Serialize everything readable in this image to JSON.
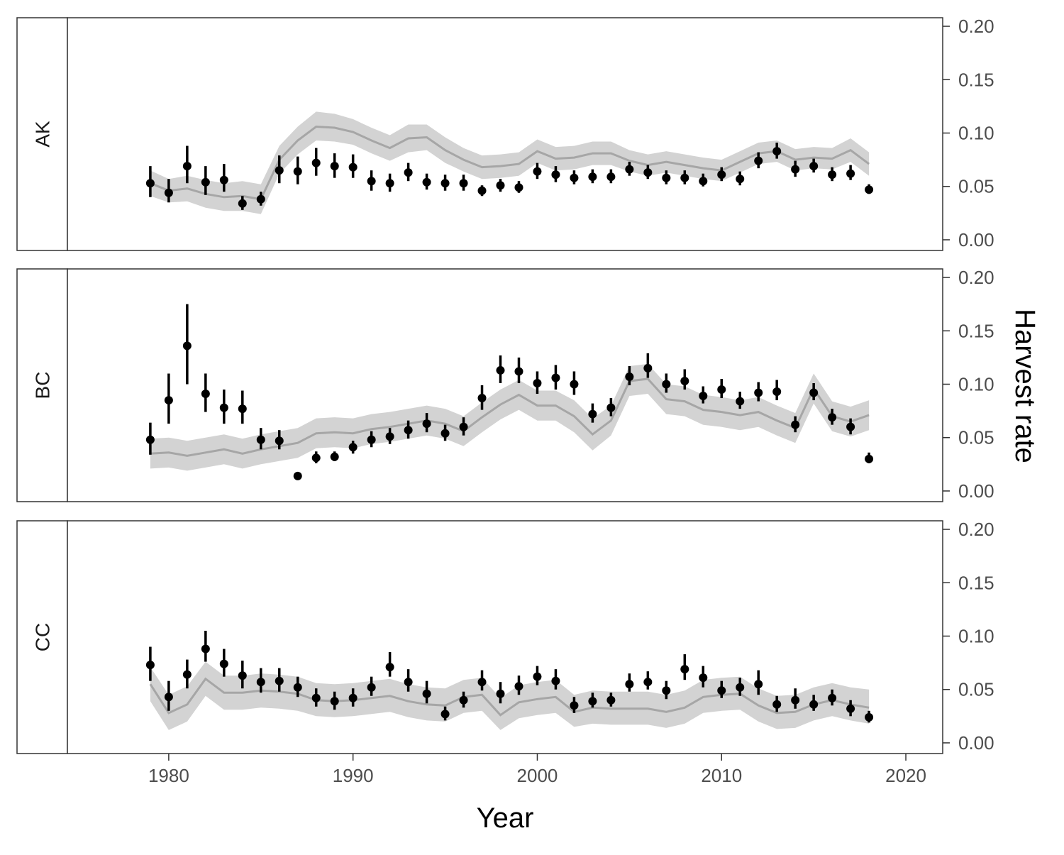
{
  "chart_data": {
    "type": "line",
    "xlabel": "Year",
    "ylabel": "Harvest rate",
    "xlim": [
      1974.5,
      2022
    ],
    "ylim": [
      -0.01,
      0.208
    ],
    "x_ticks": [
      1980,
      1990,
      2000,
      2010,
      2020
    ],
    "x_tick_labels": [
      "1980",
      "1990",
      "2000",
      "2010",
      "2020"
    ],
    "y_ticks": [
      0,
      0.05,
      0.1,
      0.15,
      0.2
    ],
    "y_tick_labels": [
      "0.00",
      "0.05",
      "0.10",
      "0.15",
      "0.20"
    ],
    "y_axis_side": "right",
    "grid": false,
    "years": [
      1979,
      1980,
      1981,
      1982,
      1983,
      1984,
      1985,
      1986,
      1987,
      1988,
      1989,
      1990,
      1991,
      1992,
      1993,
      1994,
      1995,
      1996,
      1997,
      1998,
      1999,
      2000,
      2001,
      2002,
      2003,
      2004,
      2005,
      2006,
      2007,
      2008,
      2009,
      2010,
      2011,
      2012,
      2013,
      2014,
      2015,
      2016,
      2017,
      2018
    ],
    "panels": [
      {
        "label": "AK",
        "observed": {
          "y": [
            0.053,
            0.044,
            0.069,
            0.054,
            0.056,
            0.034,
            0.038,
            0.065,
            0.064,
            0.072,
            0.069,
            0.068,
            0.055,
            0.053,
            0.063,
            0.054,
            0.053,
            0.053,
            0.046,
            0.051,
            0.049,
            0.064,
            0.061,
            0.058,
            0.059,
            0.059,
            0.066,
            0.063,
            0.058,
            0.058,
            0.055,
            0.061,
            0.057,
            0.074,
            0.083,
            0.066,
            0.069,
            0.061,
            0.062,
            0.047
          ],
          "lo": [
            0.04,
            0.035,
            0.053,
            0.042,
            0.045,
            0.028,
            0.032,
            0.053,
            0.052,
            0.06,
            0.058,
            0.058,
            0.046,
            0.045,
            0.055,
            0.047,
            0.046,
            0.046,
            0.041,
            0.045,
            0.044,
            0.057,
            0.054,
            0.052,
            0.053,
            0.053,
            0.06,
            0.057,
            0.052,
            0.052,
            0.05,
            0.055,
            0.051,
            0.067,
            0.076,
            0.059,
            0.063,
            0.055,
            0.056,
            0.043
          ],
          "hi": [
            0.069,
            0.057,
            0.088,
            0.069,
            0.071,
            0.041,
            0.045,
            0.079,
            0.078,
            0.086,
            0.081,
            0.08,
            0.065,
            0.062,
            0.072,
            0.062,
            0.061,
            0.061,
            0.051,
            0.057,
            0.055,
            0.072,
            0.069,
            0.065,
            0.066,
            0.066,
            0.073,
            0.07,
            0.065,
            0.065,
            0.062,
            0.068,
            0.064,
            0.082,
            0.091,
            0.074,
            0.076,
            0.068,
            0.07,
            0.052
          ]
        },
        "fitted": {
          "y": [
            0.053,
            0.046,
            0.048,
            0.043,
            0.04,
            0.041,
            0.038,
            0.075,
            0.093,
            0.106,
            0.105,
            0.101,
            0.093,
            0.086,
            0.095,
            0.096,
            0.084,
            0.075,
            0.068,
            0.069,
            0.071,
            0.083,
            0.076,
            0.077,
            0.081,
            0.081,
            0.074,
            0.07,
            0.073,
            0.07,
            0.067,
            0.065,
            0.073,
            0.081,
            0.083,
            0.075,
            0.077,
            0.076,
            0.084,
            0.071
          ],
          "lo": [
            0.041,
            0.035,
            0.036,
            0.03,
            0.027,
            0.027,
            0.024,
            0.062,
            0.08,
            0.093,
            0.092,
            0.089,
            0.081,
            0.074,
            0.082,
            0.084,
            0.072,
            0.064,
            0.057,
            0.058,
            0.06,
            0.072,
            0.065,
            0.066,
            0.07,
            0.07,
            0.064,
            0.06,
            0.063,
            0.06,
            0.057,
            0.055,
            0.063,
            0.071,
            0.073,
            0.065,
            0.067,
            0.066,
            0.073,
            0.06
          ],
          "hi": [
            0.065,
            0.057,
            0.06,
            0.056,
            0.053,
            0.055,
            0.052,
            0.088,
            0.106,
            0.12,
            0.118,
            0.113,
            0.105,
            0.098,
            0.108,
            0.108,
            0.096,
            0.086,
            0.079,
            0.08,
            0.082,
            0.094,
            0.087,
            0.088,
            0.092,
            0.092,
            0.084,
            0.08,
            0.083,
            0.08,
            0.077,
            0.075,
            0.083,
            0.091,
            0.093,
            0.085,
            0.087,
            0.086,
            0.095,
            0.082
          ]
        }
      },
      {
        "label": "BC",
        "observed": {
          "y": [
            0.048,
            0.085,
            0.136,
            0.091,
            0.078,
            0.077,
            0.048,
            0.047,
            0.014,
            0.031,
            0.032,
            0.041,
            0.048,
            0.051,
            0.057,
            0.063,
            0.054,
            0.06,
            0.087,
            0.113,
            0.112,
            0.101,
            0.106,
            0.1,
            0.072,
            0.078,
            0.107,
            0.115,
            0.1,
            0.103,
            0.089,
            0.095,
            0.084,
            0.092,
            0.093,
            0.062,
            0.092,
            0.069,
            0.06,
            0.03
          ],
          "lo": [
            0.034,
            0.063,
            0.1,
            0.074,
            0.063,
            0.063,
            0.039,
            0.039,
            0.014,
            0.026,
            0.028,
            0.035,
            0.041,
            0.044,
            0.049,
            0.055,
            0.047,
            0.052,
            0.076,
            0.101,
            0.101,
            0.091,
            0.095,
            0.09,
            0.064,
            0.07,
            0.099,
            0.106,
            0.092,
            0.095,
            0.082,
            0.087,
            0.077,
            0.084,
            0.085,
            0.055,
            0.085,
            0.062,
            0.053,
            0.026
          ],
          "hi": [
            0.064,
            0.11,
            0.175,
            0.11,
            0.095,
            0.094,
            0.059,
            0.057,
            0.014,
            0.037,
            0.037,
            0.047,
            0.056,
            0.059,
            0.066,
            0.073,
            0.062,
            0.069,
            0.099,
            0.127,
            0.125,
            0.112,
            0.118,
            0.112,
            0.082,
            0.087,
            0.117,
            0.129,
            0.11,
            0.114,
            0.098,
            0.105,
            0.093,
            0.102,
            0.104,
            0.07,
            0.101,
            0.077,
            0.068,
            0.036
          ]
        },
        "fitted": {
          "y": [
            0.035,
            0.036,
            0.033,
            0.036,
            0.039,
            0.035,
            0.039,
            0.042,
            0.045,
            0.054,
            0.055,
            0.054,
            0.058,
            0.06,
            0.063,
            0.066,
            0.063,
            0.056,
            0.069,
            0.081,
            0.09,
            0.08,
            0.08,
            0.07,
            0.053,
            0.066,
            0.103,
            0.105,
            0.086,
            0.084,
            0.076,
            0.074,
            0.071,
            0.074,
            0.066,
            0.059,
            0.096,
            0.07,
            0.065,
            0.071
          ],
          "lo": [
            0.021,
            0.022,
            0.019,
            0.022,
            0.025,
            0.021,
            0.025,
            0.028,
            0.031,
            0.04,
            0.041,
            0.04,
            0.044,
            0.046,
            0.049,
            0.052,
            0.049,
            0.042,
            0.055,
            0.067,
            0.076,
            0.066,
            0.066,
            0.055,
            0.038,
            0.052,
            0.089,
            0.091,
            0.072,
            0.07,
            0.062,
            0.06,
            0.057,
            0.06,
            0.052,
            0.045,
            0.082,
            0.056,
            0.051,
            0.057
          ],
          "hi": [
            0.049,
            0.05,
            0.047,
            0.05,
            0.053,
            0.049,
            0.053,
            0.056,
            0.059,
            0.068,
            0.069,
            0.068,
            0.072,
            0.074,
            0.077,
            0.08,
            0.077,
            0.07,
            0.083,
            0.095,
            0.104,
            0.094,
            0.094,
            0.085,
            0.068,
            0.08,
            0.117,
            0.119,
            0.1,
            0.098,
            0.09,
            0.088,
            0.085,
            0.088,
            0.08,
            0.073,
            0.11,
            0.084,
            0.079,
            0.085
          ]
        }
      },
      {
        "label": "CC",
        "observed": {
          "y": [
            0.073,
            0.043,
            0.064,
            0.088,
            0.074,
            0.063,
            0.057,
            0.058,
            0.052,
            0.042,
            0.039,
            0.042,
            0.052,
            0.071,
            0.057,
            0.046,
            0.027,
            0.04,
            0.057,
            0.046,
            0.053,
            0.062,
            0.058,
            0.035,
            0.039,
            0.04,
            0.055,
            0.057,
            0.049,
            0.069,
            0.061,
            0.049,
            0.052,
            0.055,
            0.036,
            0.04,
            0.036,
            0.042,
            0.032,
            0.024
          ],
          "lo": [
            0.058,
            0.03,
            0.051,
            0.076,
            0.062,
            0.051,
            0.047,
            0.048,
            0.043,
            0.034,
            0.031,
            0.034,
            0.044,
            0.062,
            0.048,
            0.037,
            0.021,
            0.033,
            0.049,
            0.037,
            0.045,
            0.054,
            0.05,
            0.028,
            0.033,
            0.034,
            0.048,
            0.05,
            0.041,
            0.059,
            0.052,
            0.042,
            0.044,
            0.045,
            0.029,
            0.032,
            0.03,
            0.035,
            0.025,
            0.019
          ],
          "hi": [
            0.09,
            0.058,
            0.078,
            0.105,
            0.088,
            0.077,
            0.07,
            0.07,
            0.062,
            0.051,
            0.048,
            0.051,
            0.062,
            0.085,
            0.069,
            0.058,
            0.034,
            0.048,
            0.068,
            0.057,
            0.063,
            0.072,
            0.069,
            0.043,
            0.047,
            0.047,
            0.065,
            0.067,
            0.058,
            0.083,
            0.072,
            0.058,
            0.061,
            0.068,
            0.044,
            0.051,
            0.045,
            0.05,
            0.04,
            0.03
          ]
        },
        "fitted": {
          "y": [
            0.055,
            0.028,
            0.036,
            0.06,
            0.047,
            0.047,
            0.049,
            0.048,
            0.046,
            0.04,
            0.039,
            0.04,
            0.042,
            0.044,
            0.039,
            0.036,
            0.035,
            0.043,
            0.045,
            0.026,
            0.038,
            0.041,
            0.043,
            0.029,
            0.033,
            0.032,
            0.032,
            0.032,
            0.029,
            0.033,
            0.043,
            0.045,
            0.046,
            0.035,
            0.028,
            0.029,
            0.036,
            0.04,
            0.036,
            0.033
          ],
          "lo": [
            0.039,
            0.012,
            0.02,
            0.044,
            0.031,
            0.031,
            0.033,
            0.032,
            0.03,
            0.025,
            0.024,
            0.025,
            0.027,
            0.029,
            0.024,
            0.021,
            0.02,
            0.028,
            0.03,
            0.012,
            0.023,
            0.026,
            0.028,
            0.015,
            0.018,
            0.017,
            0.017,
            0.017,
            0.014,
            0.018,
            0.028,
            0.03,
            0.031,
            0.02,
            0.013,
            0.014,
            0.021,
            0.025,
            0.021,
            0.018
          ],
          "hi": [
            0.071,
            0.045,
            0.053,
            0.076,
            0.063,
            0.063,
            0.065,
            0.064,
            0.062,
            0.056,
            0.055,
            0.056,
            0.058,
            0.06,
            0.055,
            0.052,
            0.051,
            0.059,
            0.061,
            0.042,
            0.054,
            0.057,
            0.059,
            0.045,
            0.049,
            0.048,
            0.048,
            0.048,
            0.045,
            0.049,
            0.059,
            0.061,
            0.062,
            0.051,
            0.044,
            0.045,
            0.052,
            0.056,
            0.052,
            0.05
          ]
        }
      }
    ]
  },
  "colors": {
    "points": "#000000",
    "fitted_line": "#a6a6a6",
    "ribbon": "#d3d3d3",
    "panel_border": "#333333",
    "tick_label": "#4d4d4d"
  }
}
